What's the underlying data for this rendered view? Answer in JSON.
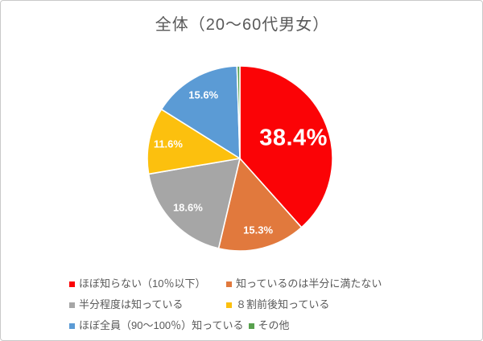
{
  "title": "全体（20〜60代男女）",
  "chart_data": {
    "type": "pie",
    "title": "全体（20〜60代男女）",
    "direction": "clockwise",
    "start_angle_deg": 0,
    "legend_position": "bottom",
    "label_color": "#FFFFFF",
    "slices": [
      {
        "name": "ほぼ知らない（10％以下）",
        "value": 38.4,
        "label": "38.4%",
        "color": "#FB0306",
        "label_size": "large",
        "label_radius": 0.62
      },
      {
        "name": "知っているのは半分に満たない",
        "value": 15.3,
        "label": "15.3%",
        "color": "#E1793D",
        "label_size": "small",
        "label_radius": 0.8
      },
      {
        "name": "半分程度は知っている",
        "value": 18.6,
        "label": "18.6%",
        "color": "#A6A6A6",
        "label_size": "small",
        "label_radius": 0.77
      },
      {
        "name": "８割前後知っている",
        "value": 11.6,
        "label": "11.6%",
        "color": "#FCC00E",
        "label_size": "small",
        "label_radius": 0.79
      },
      {
        "name": "ほぼ全員（90〜100％）知っている",
        "value": 15.6,
        "label": "15.6%",
        "color": "#5B9BD5",
        "label_size": "small",
        "label_radius": 0.79
      },
      {
        "name": "その他",
        "value": 0.5,
        "label": "",
        "color": "#58A14E",
        "label_size": "none",
        "label_radius": 0
      }
    ]
  }
}
